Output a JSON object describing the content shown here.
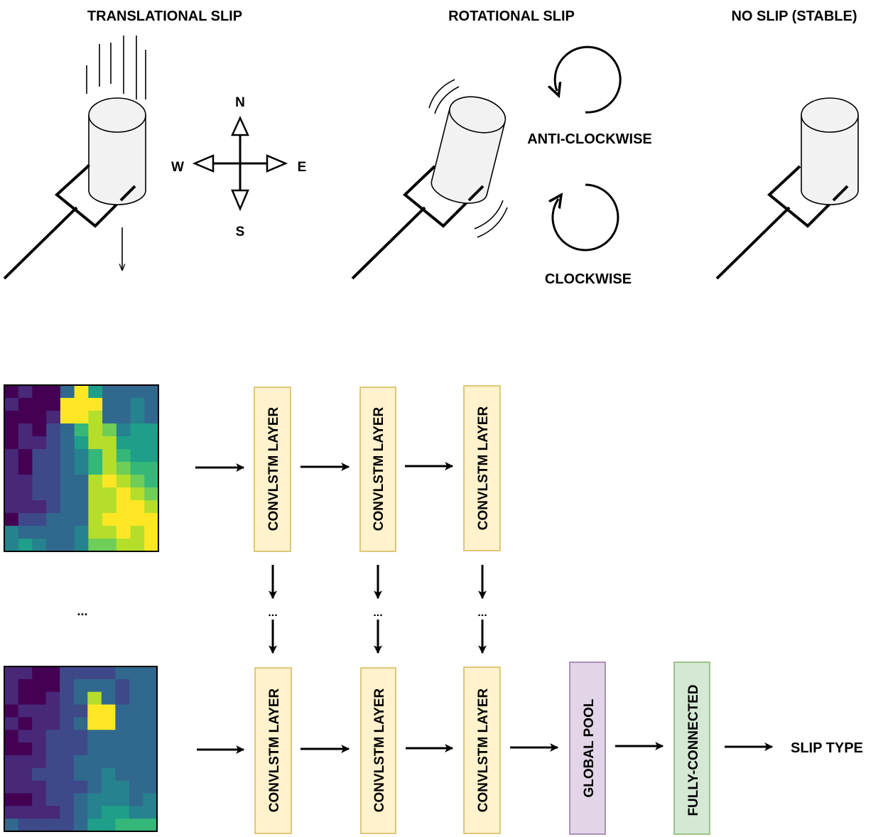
{
  "titles": {
    "translational": "TRANSLATIONAL SLIP",
    "rotational": "ROTATIONAL SLIP",
    "stable": "NO SLIP (STABLE)"
  },
  "compass": {
    "north": "N",
    "south": "S",
    "east": "E",
    "west": "W"
  },
  "rotation": {
    "anticlockwise": "ANTI-CLOCKWISE",
    "clockwise": "CLOCKWISE"
  },
  "pipeline": {
    "layer_label": "CONVLSTM LAYER",
    "pool_label": "GLOBAL POOL",
    "fc_label": "FULLY-CONNECTED",
    "output_label": "SLIP TYPE",
    "ellipsis": "..."
  },
  "colors": {
    "convlstm_fill": "#fff2cc",
    "convlstm_stroke": "#d6b656",
    "pool_fill": "#e1d5e7",
    "pool_stroke": "#9673a6",
    "fc_fill": "#d5e8d4",
    "fc_stroke": "#82b366",
    "cylinder_fill": "#f2f2f2"
  },
  "heatmap_top": [
    [
      0,
      1,
      0,
      0,
      3,
      9,
      5,
      3,
      3,
      3,
      3
    ],
    [
      1,
      0,
      0,
      0,
      9,
      9,
      9,
      3,
      3,
      4,
      3
    ],
    [
      0,
      0,
      0,
      1,
      9,
      9,
      8,
      3,
      3,
      4,
      3
    ],
    [
      0,
      1,
      0,
      2,
      3,
      6,
      8,
      7,
      4,
      5,
      5
    ],
    [
      0,
      1,
      1,
      2,
      3,
      5,
      8,
      8,
      5,
      5,
      5
    ],
    [
      1,
      0,
      2,
      2,
      3,
      4,
      6,
      8,
      6,
      5,
      5
    ],
    [
      1,
      0,
      2,
      2,
      3,
      4,
      6,
      8,
      7,
      6,
      6
    ],
    [
      1,
      1,
      2,
      2,
      3,
      3,
      8,
      9,
      8,
      7,
      6
    ],
    [
      1,
      1,
      2,
      2,
      3,
      3,
      8,
      8,
      9,
      8,
      7
    ],
    [
      1,
      1,
      1,
      2,
      3,
      3,
      8,
      8,
      9,
      9,
      8
    ],
    [
      0,
      2,
      2,
      3,
      3,
      3,
      8,
      9,
      9,
      9,
      9
    ],
    [
      4,
      3,
      3,
      3,
      3,
      4,
      8,
      8,
      9,
      8,
      9
    ],
    [
      4,
      5,
      4,
      3,
      3,
      4,
      7,
      7,
      8,
      8,
      9
    ]
  ],
  "heatmap_bottom": [
    [
      1,
      1,
      0,
      0,
      2,
      2,
      2,
      2,
      3,
      3,
      3
    ],
    [
      1,
      0,
      0,
      0,
      2,
      3,
      3,
      3,
      2,
      3,
      3
    ],
    [
      1,
      0,
      0,
      1,
      2,
      3,
      8,
      3,
      2,
      3,
      3
    ],
    [
      0,
      1,
      1,
      1,
      2,
      2,
      9,
      9,
      3,
      3,
      3
    ],
    [
      1,
      0,
      1,
      1,
      2,
      3,
      9,
      9,
      3,
      3,
      3
    ],
    [
      0,
      1,
      1,
      2,
      2,
      2,
      3,
      3,
      3,
      3,
      3
    ],
    [
      0,
      0,
      1,
      2,
      2,
      2,
      3,
      3,
      3,
      3,
      3
    ],
    [
      1,
      1,
      1,
      2,
      2,
      3,
      3,
      3,
      3,
      3,
      3
    ],
    [
      1,
      1,
      2,
      2,
      2,
      3,
      3,
      4,
      3,
      3,
      3
    ],
    [
      1,
      1,
      1,
      2,
      2,
      2,
      3,
      4,
      4,
      3,
      3
    ],
    [
      0,
      0,
      1,
      2,
      2,
      3,
      4,
      4,
      4,
      3,
      4
    ],
    [
      1,
      1,
      1,
      1,
      2,
      3,
      4,
      5,
      5,
      4,
      4
    ],
    [
      3,
      2,
      2,
      2,
      2,
      3,
      5,
      5,
      6,
      6,
      6
    ]
  ],
  "heatmap_palette": [
    "#440154",
    "#482878",
    "#3e4989",
    "#31688e",
    "#26828e",
    "#1f9e89",
    "#35b779",
    "#6ece58",
    "#b5de2b",
    "#fde725"
  ]
}
